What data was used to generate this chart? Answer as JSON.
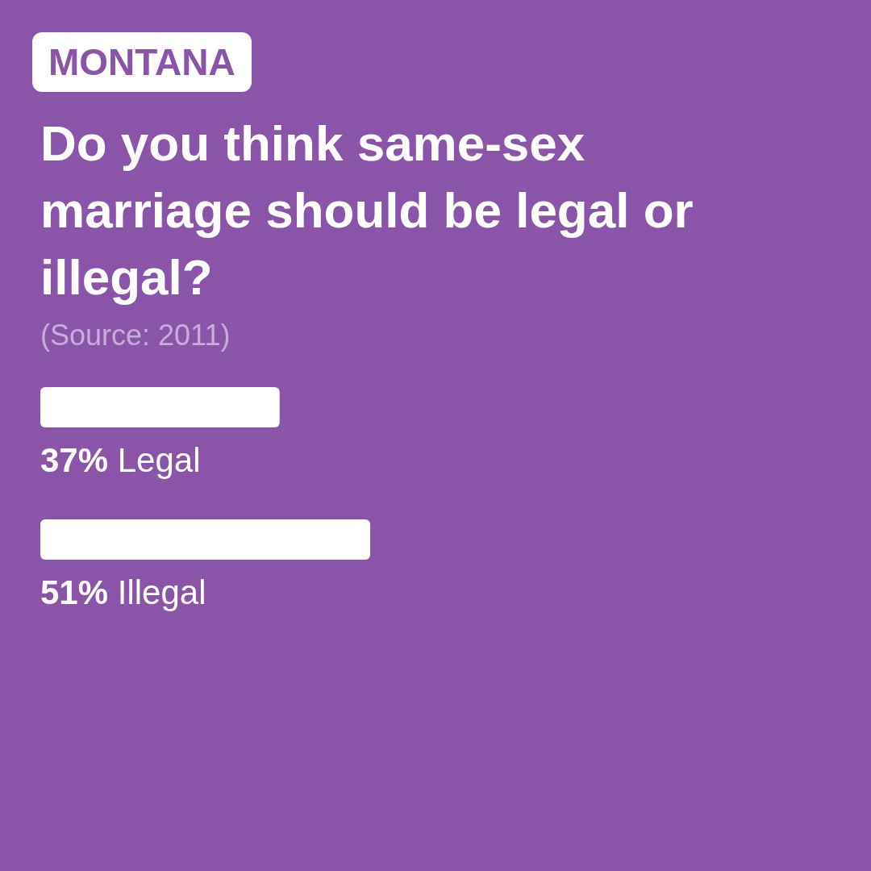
{
  "chart_data": {
    "type": "bar",
    "orientation": "horizontal",
    "title": "Do you think same-sex marriage should be legal or illegal?",
    "subtitle": "MONTANA",
    "annotations": [
      "(Source: 2011)"
    ],
    "categories": [
      "Legal",
      "Illegal"
    ],
    "values": [
      37,
      51
    ],
    "value_labels": [
      "37%",
      "51%"
    ],
    "color": "#ffffff",
    "tick_labels": false,
    "grid": false,
    "legend": false
  }
}
